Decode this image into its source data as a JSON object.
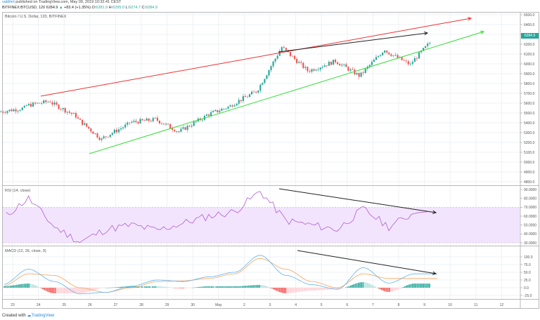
{
  "header": {
    "publisher": "valdrint",
    "published_text": " published on TradingView.com, May 09, 2019 10:32:41 CEST",
    "symbol": "BITFINEX:BTCUSD, 120",
    "last": "6284.9",
    "change_icon": "triangle-up-icon",
    "change": "+83.4 (+1.35%)",
    "open_label": "O:",
    "open": "6281.9",
    "high_label": "H:",
    "high": "6295.0",
    "low_label": "L:",
    "low": "6274.7",
    "close_label": "C:",
    "close": "6284.9"
  },
  "main_pane": {
    "title": "Bitcoin / U.S. Dollar, 120, BITFINEX",
    "price_tag": "6284.9",
    "price_tag_color": "#26a69a"
  },
  "rsi_pane": {
    "title": "RSI (14, close)"
  },
  "macd_pane": {
    "title": "MACD (12, 26, close, 9)"
  },
  "footer": {
    "created_with": "Created with",
    "brand": "TradingView"
  },
  "colors": {
    "up": "#26a69a",
    "down": "#ef5350",
    "resistance_line": "#f03030",
    "support_line": "#33dd33",
    "divergence_line": "#222222",
    "rsi_line": "#b05fd0",
    "rsi_band": "#f2e4fd",
    "macd_line": "#5fb4f0",
    "signal_line": "#f7a35c"
  },
  "chart_data": [
    {
      "type": "candlestick",
      "title": "Bitcoin / U.S. Dollar, 120, BITFINEX",
      "x_tick_labels": [
        "23",
        "24",
        "25",
        "26",
        "27",
        "28",
        "29",
        "30",
        "May",
        "2",
        "3",
        "4",
        "5",
        "6",
        "7",
        "8",
        "9",
        "10",
        "11",
        "12"
      ],
      "y_tick_labels": [
        "6500.0",
        "6400.0",
        "6300.0",
        "6200.0",
        "6100.0",
        "6000.0",
        "5900.0",
        "5800.0",
        "5700.0",
        "5600.0",
        "5500.0",
        "5400.0",
        "5300.0",
        "5200.0",
        "5100.0",
        "5000.0",
        "4900.0",
        "4800.0"
      ],
      "ylim": [
        4800,
        6500
      ],
      "approx_daily_close": {
        "x": [
          "23",
          "24",
          "25",
          "26",
          "27",
          "28",
          "29",
          "30",
          "May",
          "2",
          "3",
          "4",
          "5",
          "6",
          "7",
          "8",
          "9"
        ],
        "y": [
          5550,
          5620,
          5470,
          5230,
          5380,
          5430,
          5310,
          5460,
          5570,
          5720,
          6170,
          5930,
          6020,
          5880,
          6150,
          5990,
          6285
        ]
      },
      "last_price": 6284.9,
      "annotations": [
        {
          "type": "trendline",
          "name": "resistance",
          "color": "red",
          "from": [
            "24",
            5700
          ],
          "to": [
            "11",
            6530
          ]
        },
        {
          "type": "trendline",
          "name": "support",
          "color": "green",
          "from": [
            "26",
            5130
          ],
          "to": [
            "11",
            6340
          ]
        },
        {
          "type": "arrow",
          "name": "higher-highs",
          "color": "black",
          "from": [
            "3.5",
            6140
          ],
          "to": [
            "9",
            6340
          ]
        }
      ]
    },
    {
      "type": "line",
      "title": "RSI (14, close)",
      "ylim": [
        25,
        95
      ],
      "y_tick_labels": [
        "90.0000",
        "80.0000",
        "70.0000",
        "60.0000",
        "50.0000",
        "40.0000",
        "30.0000"
      ],
      "band": [
        30,
        70
      ],
      "approx_values": {
        "x": [
          "23",
          "24",
          "25",
          "26",
          "27",
          "28",
          "29",
          "30",
          "May",
          "2",
          "3",
          "4",
          "5",
          "6",
          "7",
          "8",
          "9"
        ],
        "y": [
          58,
          80,
          48,
          31,
          45,
          50,
          44,
          52,
          60,
          65,
          88,
          55,
          50,
          45,
          68,
          48,
          64
        ]
      },
      "annotations": [
        {
          "type": "arrow",
          "name": "bearish-divergence",
          "color": "black",
          "from": [
            "3.5",
            89
          ],
          "to": [
            "9.5",
            63
          ]
        }
      ]
    },
    {
      "type": "line+histogram",
      "title": "MACD (12, 26, close, 9)",
      "ylim": [
        -37,
        125
      ],
      "y_tick_labels": [
        "100.0",
        "75.0",
        "50.0",
        "25.0",
        "0.0",
        "-25.0"
      ],
      "series": [
        {
          "name": "MACD",
          "approx_values": [
            10,
            60,
            20,
            -20,
            -15,
            5,
            25,
            20,
            35,
            50,
            105,
            40,
            10,
            -5,
            65,
            15,
            45
          ]
        },
        {
          "name": "Signal",
          "approx_values": [
            5,
            45,
            40,
            0,
            -15,
            0,
            20,
            22,
            30,
            45,
            95,
            60,
            20,
            0,
            45,
            30,
            30
          ]
        }
      ],
      "annotations": [
        {
          "type": "arrow",
          "name": "bearish-divergence",
          "color": "black",
          "from": [
            "4",
            108
          ],
          "to": [
            "9.5",
            45
          ]
        }
      ]
    }
  ]
}
